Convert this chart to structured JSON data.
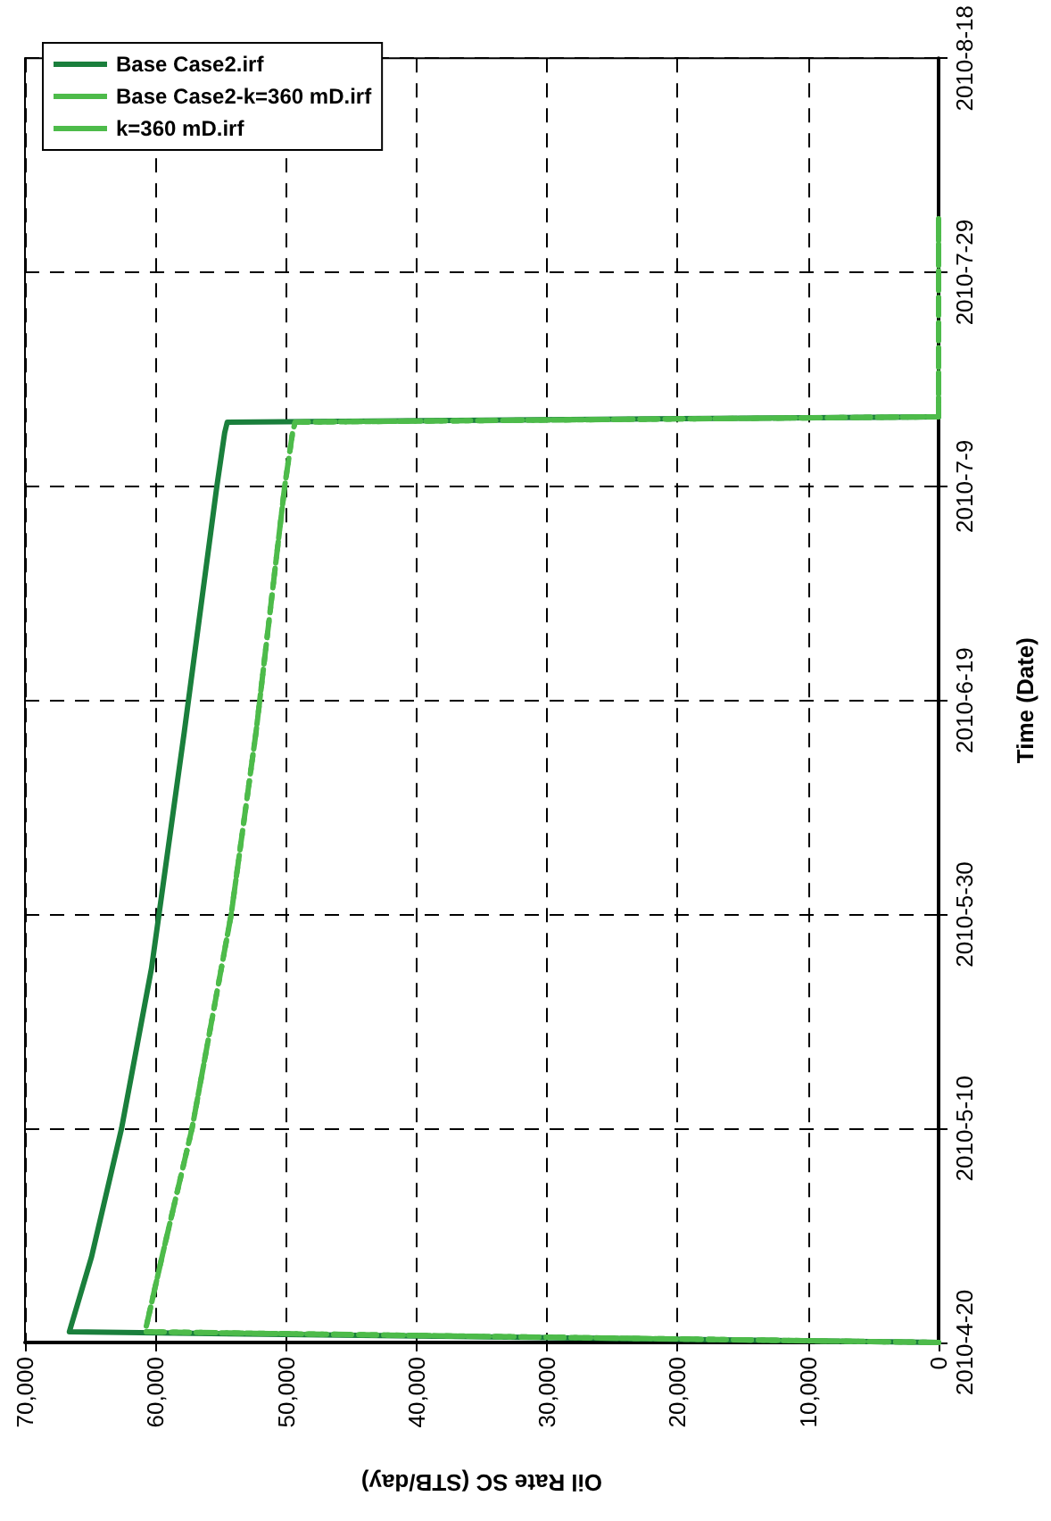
{
  "chart_data": {
    "type": "line",
    "orientation": "horizontal",
    "xlabel": "Oil Rate SC (STB/day)",
    "ylabel": "Time (Date)",
    "xlim": [
      70000,
      0
    ],
    "xticks": [
      {
        "value": 70000,
        "label": "70,000"
      },
      {
        "value": 60000,
        "label": "60,000"
      },
      {
        "value": 50000,
        "label": "50,000"
      },
      {
        "value": 40000,
        "label": "40,000"
      },
      {
        "value": 30000,
        "label": "30,000"
      },
      {
        "value": 20000,
        "label": "20,000"
      },
      {
        "value": 10000,
        "label": "10,000"
      },
      {
        "value": 0,
        "label": "0"
      }
    ],
    "ylim": [
      "2010-04-20",
      "2010-08-18"
    ],
    "yticks": [
      {
        "value": "2010-04-20",
        "label": "2010-4-20"
      },
      {
        "value": "2010-05-10",
        "label": "2010-5-10"
      },
      {
        "value": "2010-05-30",
        "label": "2010-5-30"
      },
      {
        "value": "2010-06-19",
        "label": "2010-6-19"
      },
      {
        "value": "2010-07-09",
        "label": "2010-7-9"
      },
      {
        "value": "2010-07-29",
        "label": "2010-7-29"
      },
      {
        "value": "2010-08-18",
        "label": "2010-8-18"
      }
    ],
    "grid": true,
    "legend": "top left",
    "marker": "none",
    "series": [
      {
        "name": "Base Case2.irf",
        "color": "#1a7f3c",
        "line_style": "solid",
        "x": [
          "2010-04-20",
          "2010-04-21",
          "2010-04-28",
          "2010-05-10",
          "2010-05-25",
          "2010-06-16",
          "2010-07-09",
          "2010-07-14",
          "2010-07-15T00:00",
          "2010-07-15T12:00"
        ],
        "values": [
          0,
          66600,
          64900,
          62600,
          60300,
          57800,
          55300,
          54700,
          54500,
          0
        ]
      },
      {
        "name": "Base Case2-k=360 mD.irf",
        "color": "#4dbb4a",
        "line_style": "dotted",
        "x": [
          "2010-04-20",
          "2010-04-21",
          "2010-04-28",
          "2010-05-10",
          "2010-05-30",
          "2010-06-16",
          "2010-07-09",
          "2010-07-14",
          "2010-07-15T00:00",
          "2010-07-15T12:00",
          "2010-08-03"
        ],
        "values": [
          0,
          60800,
          59500,
          57200,
          54200,
          52300,
          50100,
          49500,
          49300,
          0,
          0
        ]
      },
      {
        "name": "k=360 mD.irf",
        "color": "#4dbb4a",
        "line_style": "dashed",
        "x": [
          "2010-04-20",
          "2010-04-21",
          "2010-04-28",
          "2010-05-10",
          "2010-05-30",
          "2010-06-16",
          "2010-07-09",
          "2010-07-14",
          "2010-07-15T00:00",
          "2010-07-15T12:00",
          "2010-08-03"
        ],
        "values": [
          0,
          60800,
          59500,
          57200,
          54200,
          52300,
          50100,
          49500,
          49300,
          0,
          0
        ]
      }
    ]
  }
}
